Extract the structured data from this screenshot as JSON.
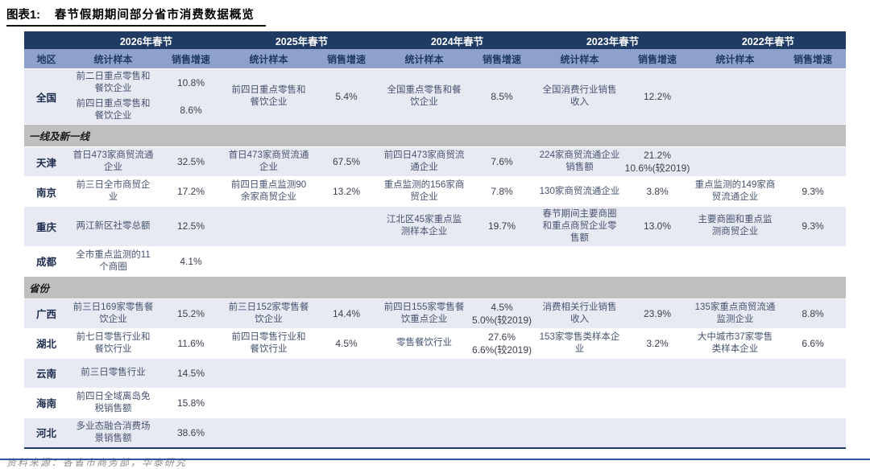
{
  "page": {
    "figure_label": "图表1:",
    "title": "春节假期期间部分省市消费数据概览",
    "source": "资料来源：各省市商务部，华泰研究"
  },
  "colors": {
    "header_dark": "#1F3A63",
    "header_light": "#8DA1CC",
    "row_lavender": "#E8EAF3",
    "section_gray": "#BFBFBF",
    "bottom_rule_blue": "#2F5597"
  },
  "table": {
    "region_header": "地区",
    "sample_header": "统计样本",
    "growth_header": "销售增速",
    "years": [
      "2026年春节",
      "2025年春节",
      "2024年春节",
      "2023年春节",
      "2022年春节"
    ],
    "sections": [
      {
        "title": null,
        "rows": [
          {
            "region": "全国",
            "shade": "lav",
            "cells": [
              [
                {
                  "s": "前二日重点零售和餐饮企业",
                  "g": [
                    "10.8%"
                  ]
                },
                {
                  "s": "前四日重点零售和餐饮企业",
                  "g": [
                    "8.6%"
                  ]
                }
              ],
              [
                {
                  "s": "前四日重点零售和餐饮企业",
                  "g": [
                    "5.4%"
                  ]
                }
              ],
              [
                {
                  "s": "全国重点零售和餐饮企业",
                  "g": [
                    "8.5%"
                  ]
                }
              ],
              [
                {
                  "s": "全国消费行业销售收入",
                  "g": [
                    "12.2%"
                  ]
                }
              ],
              []
            ]
          }
        ]
      },
      {
        "title": "一线及新一线",
        "rows": [
          {
            "region": "天津",
            "shade": "lav",
            "cells": [
              [
                {
                  "s": "首日473家商贸流通企业",
                  "g": [
                    "32.5%"
                  ]
                }
              ],
              [
                {
                  "s": "首日473家商贸流通企业",
                  "g": [
                    "67.5%"
                  ]
                }
              ],
              [
                {
                  "s": "前四日473家商贸流通企业",
                  "g": [
                    "7.6%"
                  ]
                }
              ],
              [
                {
                  "s": "224家商贸流通企业销售额",
                  "g": [
                    "21.2%",
                    "10.6%(较2019)"
                  ]
                }
              ],
              []
            ]
          },
          {
            "region": "南京",
            "shade": "wht",
            "cells": [
              [
                {
                  "s": "前三日全市商贸企业",
                  "g": [
                    "17.2%"
                  ]
                }
              ],
              [
                {
                  "s": "前四日重点监测90余家商贸企业",
                  "g": [
                    "13.2%"
                  ]
                }
              ],
              [
                {
                  "s": "重点监测的156家商贸企业",
                  "g": [
                    "7.8%"
                  ]
                }
              ],
              [
                {
                  "s": "130家商贸流通企业",
                  "g": [
                    "3.8%"
                  ]
                }
              ],
              [
                {
                  "s": "重点监测的149家商贸流通企业",
                  "g": [
                    "9.3%"
                  ]
                }
              ]
            ]
          },
          {
            "region": "重庆",
            "shade": "lav",
            "cells": [
              [
                {
                  "s": "两江新区社零总额",
                  "g": [
                    "12.5%"
                  ]
                }
              ],
              [],
              [
                {
                  "s": "江北区45家重点监测样本企业",
                  "g": [
                    "19.7%"
                  ]
                }
              ],
              [
                {
                  "s": "春节期间主要商圈和重点商贸企业零售额",
                  "g": [
                    "13.0%"
                  ]
                }
              ],
              [
                {
                  "s": "主要商圈和重点监测商贸企业",
                  "g": [
                    "9.3%"
                  ]
                }
              ]
            ]
          },
          {
            "region": "成都",
            "shade": "wht",
            "cells": [
              [
                {
                  "s": "全市重点监测的11个商圈",
                  "g": [
                    "4.1%"
                  ]
                }
              ],
              [],
              [],
              [],
              []
            ]
          }
        ]
      },
      {
        "title": "省份",
        "rows": [
          {
            "region": "广西",
            "shade": "lav",
            "cells": [
              [
                {
                  "s": "前三日169家零售餐饮企业",
                  "g": [
                    "15.2%"
                  ]
                }
              ],
              [
                {
                  "s": "前三日152家零售餐饮企业",
                  "g": [
                    "14.4%"
                  ]
                }
              ],
              [
                {
                  "s": "前四日155家零售餐饮重点企业",
                  "g": [
                    "4.5%",
                    "5.0%(较2019)"
                  ]
                }
              ],
              [
                {
                  "s": "消费相关行业销售收入",
                  "g": [
                    "23.9%"
                  ]
                }
              ],
              [
                {
                  "s": "135家重点商贸流通监测企业",
                  "g": [
                    "8.8%"
                  ]
                }
              ]
            ]
          },
          {
            "region": "湖北",
            "shade": "wht",
            "cells": [
              [
                {
                  "s": "前七日零售行业和餐饮行业",
                  "g": [
                    "11.6%"
                  ]
                }
              ],
              [
                {
                  "s": "前四日零售行业和餐饮行业",
                  "g": [
                    "4.5%"
                  ]
                }
              ],
              [
                {
                  "s": "零售餐饮行业",
                  "g": [
                    "27.6%",
                    "6.6%(较2019)"
                  ]
                }
              ],
              [
                {
                  "s": "153家零售类样本企业",
                  "g": [
                    "3.2%"
                  ]
                }
              ],
              [
                {
                  "s": "大中城市37家零售类样本企业",
                  "g": [
                    "6.6%"
                  ]
                }
              ]
            ]
          },
          {
            "region": "云南",
            "shade": "lav",
            "cells": [
              [
                {
                  "s": "前三日零售行业",
                  "g": [
                    "14.5%"
                  ]
                }
              ],
              [],
              [],
              [],
              []
            ]
          },
          {
            "region": "海南",
            "shade": "wht",
            "cells": [
              [
                {
                  "s": "前四日全域离岛免税销售额",
                  "g": [
                    "15.8%"
                  ]
                }
              ],
              [],
              [],
              [],
              []
            ]
          },
          {
            "region": "河北",
            "shade": "lav",
            "cells": [
              [
                {
                  "s": "多业态融合消费场景销售额",
                  "g": [
                    "38.6%"
                  ]
                }
              ],
              [],
              [],
              [],
              []
            ]
          }
        ]
      }
    ]
  }
}
